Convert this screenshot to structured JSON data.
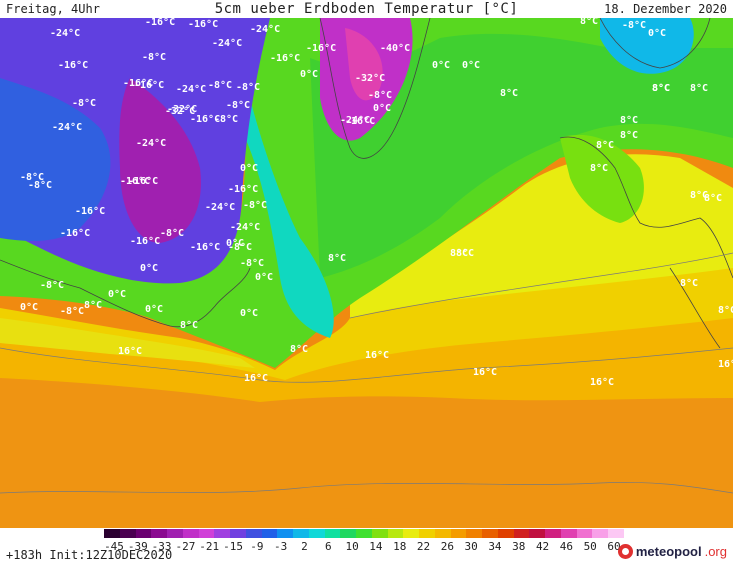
{
  "header": {
    "left": "Freitag, 4Uhr",
    "title": "5cm ueber Erdboden Temperatur [°C]",
    "right": "18. Dezember 2020"
  },
  "footer": {
    "left": "+183h  Init:12Z10DEC2020",
    "logo_main": "meteopool",
    "logo_suffix": ".org"
  },
  "legend": {
    "labels": [
      "-45",
      "-39",
      "-33",
      "-27",
      "-21",
      "-15",
      "-9",
      "-3",
      "2",
      "6",
      "10",
      "14",
      "18",
      "22",
      "26",
      "30",
      "34",
      "38",
      "42",
      "46",
      "50",
      "60"
    ],
    "colors": [
      "#2a0030",
      "#4a0050",
      "#6a0070",
      "#8a0a90",
      "#a020b0",
      "#c030c8",
      "#d040d8",
      "#a040e0",
      "#7040e0",
      "#4050e0",
      "#2060e8",
      "#1090f0",
      "#10b8e8",
      "#10d8d8",
      "#10e0a0",
      "#20d860",
      "#40e030",
      "#80e010",
      "#b8e810",
      "#e8ec10",
      "#f0d000",
      "#f4b800",
      "#f49c00",
      "#f08000",
      "#e86000",
      "#e04000",
      "#d02020",
      "#c01040",
      "#d02080",
      "#e040b0",
      "#f070d0",
      "#f8a0e8",
      "#fcc8f4"
    ]
  },
  "map_labels": [
    {
      "text": "-24°C"
    },
    {
      "text": "-16°C"
    },
    {
      "text": "-16°C"
    },
    {
      "text": "-24°C"
    },
    {
      "text": "-24°C"
    },
    {
      "text": "-16°C"
    },
    {
      "text": "-16°C"
    },
    {
      "text": "-32°C"
    },
    {
      "text": "-8°C"
    },
    {
      "text": "-8°C"
    },
    {
      "text": "-8°C"
    },
    {
      "text": "-8°C"
    },
    {
      "text": "-16°C"
    },
    {
      "text": "-24°C"
    },
    {
      "text": "-8°C"
    },
    {
      "text": "-16°C"
    },
    {
      "text": "0°C"
    },
    {
      "text": "-16°C"
    },
    {
      "text": "-40°C"
    },
    {
      "text": "-24°C"
    },
    {
      "text": "-16°C"
    },
    {
      "text": "0°C"
    },
    {
      "text": "0°C"
    },
    {
      "text": "-32°C"
    },
    {
      "text": "-8°C"
    },
    {
      "text": "0°C"
    },
    {
      "text": "-24°C"
    },
    {
      "text": "-16°C"
    },
    {
      "text": "-8°C"
    },
    {
      "text": "-16°C"
    },
    {
      "text": "-32°C"
    },
    {
      "text": "-16°C"
    },
    {
      "text": "-8°C"
    },
    {
      "text": "-24°C"
    },
    {
      "text": "0°C"
    },
    {
      "text": "-8°C"
    },
    {
      "text": "-16°C"
    },
    {
      "text": "-16°C"
    },
    {
      "text": "-24°C"
    },
    {
      "text": "-8°C"
    },
    {
      "text": "-16°C"
    },
    {
      "text": "-24°C"
    },
    {
      "text": "-8°C"
    },
    {
      "text": "-16°C"
    },
    {
      "text": "0°C"
    },
    {
      "text": "-16°C"
    },
    {
      "text": "-8°C"
    },
    {
      "text": "0°C"
    },
    {
      "text": "0°C"
    },
    {
      "text": "-8°C"
    },
    {
      "text": "-8°C"
    },
    {
      "text": "0°C"
    },
    {
      "text": "0°C"
    },
    {
      "text": "0°C"
    },
    {
      "text": "0°C"
    },
    {
      "text": "-8°C"
    },
    {
      "text": "8°C"
    },
    {
      "text": "8°C"
    },
    {
      "text": "0°C"
    },
    {
      "text": "8°C"
    },
    {
      "text": "8°C"
    },
    {
      "text": "8°C"
    },
    {
      "text": "16°C"
    },
    {
      "text": "16°C"
    },
    {
      "text": "16°C"
    },
    {
      "text": "16°C"
    },
    {
      "text": "16°C"
    },
    {
      "text": "16°C"
    },
    {
      "text": "8°C"
    },
    {
      "text": "8°C"
    },
    {
      "text": "8°C"
    },
    {
      "text": "8°C"
    },
    {
      "text": "8°C"
    },
    {
      "text": "8°C"
    },
    {
      "text": "8°C"
    },
    {
      "text": "8°C"
    },
    {
      "text": "8°C"
    },
    {
      "text": "8°C"
    },
    {
      "text": "8°C"
    },
    {
      "text": "8°C"
    },
    {
      "text": "-8°C"
    },
    {
      "text": "0°C"
    },
    {
      "text": "8°C"
    },
    {
      "text": "8°C"
    }
  ]
}
